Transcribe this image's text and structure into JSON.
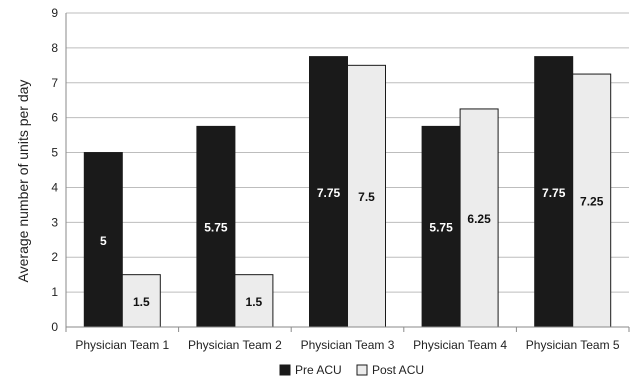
{
  "chart_data": {
    "type": "bar",
    "title": "",
    "xlabel": "",
    "ylabel": "Average number of units per day",
    "ylim": [
      0,
      9
    ],
    "yticks": [
      0,
      1,
      2,
      3,
      4,
      5,
      6,
      7,
      8,
      9
    ],
    "grid": true,
    "legend_position": "bottom",
    "categories": [
      "Physician Team 1",
      "Physician Team 2",
      "Physician Team 3",
      "Physician Team 4",
      "Physician Team 5"
    ],
    "series": [
      {
        "name": "Pre ACU",
        "color": "#1a1a1a",
        "label_color": "#ffffff",
        "values": [
          5,
          5.75,
          7.75,
          5.75,
          7.75
        ],
        "labels": [
          "5",
          "5.75",
          "7.75",
          "5.75",
          "7.75"
        ]
      },
      {
        "name": "Post ACU",
        "color": "#ececec",
        "label_color": "#111111",
        "values": [
          1.5,
          1.5,
          7.5,
          6.25,
          7.25
        ],
        "labels": [
          "1.5",
          "1.5",
          "7.5",
          "6.25",
          "7.25"
        ]
      }
    ]
  }
}
